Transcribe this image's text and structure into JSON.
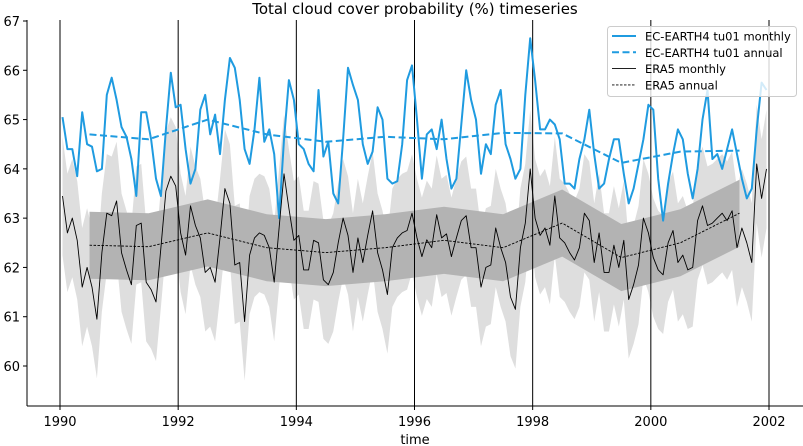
{
  "chart_data": {
    "type": "line",
    "title": "Total cloud cover probability (%) timeseries",
    "xlabel": "time",
    "ylabel": "",
    "xlim": [
      1989.45,
      2002.6
    ],
    "ylim": [
      59.2,
      67.0
    ],
    "xticks": [
      1990,
      1992,
      1994,
      1996,
      1998,
      2000,
      2002
    ],
    "xtick_labels": [
      "1990",
      "1992",
      "1994",
      "1996",
      "1998",
      "2000",
      "2002"
    ],
    "yticks": [
      60,
      61,
      62,
      63,
      64,
      65,
      66,
      67
    ],
    "ytick_labels": [
      "60",
      "61",
      "62",
      "63",
      "64",
      "65",
      "66",
      "67"
    ],
    "vertical_lines": [
      1990,
      1992,
      1994,
      1996,
      1998,
      2000,
      2002
    ],
    "grid": false,
    "legend_placement": "top-right",
    "monthly_start_year": 1990,
    "annual_x": [
      1990.5,
      1991.5,
      1992.5,
      1993.5,
      1994.5,
      1995.5,
      1996.5,
      1997.5,
      1998.5,
      1999.5,
      2000.5,
      2001.5
    ],
    "series": [
      {
        "name": "EC-EARTH4 tu01 monthly",
        "color": "#1f9be0",
        "style": "solid",
        "values": [
          65.05,
          64.4,
          64.4,
          63.85,
          65.15,
          64.5,
          64.45,
          63.95,
          64.0,
          65.5,
          65.85,
          65.4,
          64.85,
          64.65,
          64.2,
          63.45,
          65.15,
          65.15,
          64.6,
          63.8,
          63.45,
          64.8,
          65.95,
          65.25,
          65.3,
          64.4,
          63.7,
          64.0,
          65.2,
          65.5,
          64.7,
          65.1,
          64.3,
          65.4,
          66.25,
          66.05,
          65.4,
          64.4,
          64.1,
          64.8,
          65.85,
          64.55,
          64.8,
          64.3,
          63.0,
          64.6,
          65.8,
          65.4,
          64.5,
          64.4,
          64.1,
          63.95,
          65.6,
          64.25,
          64.55,
          63.5,
          63.3,
          64.6,
          66.05,
          65.7,
          65.4,
          64.5,
          64.1,
          64.35,
          65.25,
          65.0,
          63.8,
          63.7,
          63.75,
          64.5,
          65.8,
          66.1,
          65.0,
          63.8,
          64.7,
          64.8,
          64.4,
          65.0,
          64.2,
          63.6,
          63.8,
          64.9,
          66.0,
          65.4,
          65.0,
          63.9,
          64.5,
          64.3,
          65.3,
          65.6,
          64.5,
          64.2,
          63.8,
          64.0,
          65.5,
          66.65,
          65.8,
          64.8,
          64.8,
          65.0,
          64.9,
          64.6,
          63.7,
          63.7,
          63.6,
          64.2,
          64.6,
          65.2,
          64.3,
          63.6,
          63.7,
          64.2,
          64.6,
          64.6,
          63.9,
          63.3,
          63.6,
          64.1,
          64.6,
          65.3,
          65.2,
          63.8,
          62.95,
          63.7,
          64.3,
          64.8,
          64.6,
          63.9,
          63.4,
          64.0,
          65.0,
          65.6,
          64.2,
          64.3,
          64.0,
          64.4,
          64.8,
          64.3,
          63.8,
          63.4,
          63.6,
          64.8,
          65.75,
          65.6
        ]
      },
      {
        "name": "EC-EARTH4 tu01 annual",
        "color": "#1f9be0",
        "style": "dashed",
        "values": [
          64.7,
          64.6,
          65.0,
          64.7,
          64.55,
          64.65,
          64.6,
          64.73,
          64.72,
          64.12,
          64.35,
          64.37
        ]
      },
      {
        "name": "ERA5 monthly",
        "color": "#000000",
        "style": "solid",
        "values": [
          63.45,
          62.7,
          63.0,
          62.55,
          61.6,
          62.0,
          61.6,
          60.95,
          62.3,
          63.1,
          63.05,
          63.35,
          62.3,
          61.95,
          61.65,
          62.85,
          62.9,
          61.7,
          61.55,
          61.3,
          62.4,
          63.55,
          63.85,
          63.65,
          62.7,
          62.25,
          63.25,
          62.85,
          62.6,
          61.9,
          62.0,
          61.7,
          62.6,
          63.6,
          63.3,
          62.05,
          62.1,
          60.9,
          62.25,
          62.6,
          62.7,
          62.65,
          62.4,
          61.7,
          62.8,
          63.9,
          63.2,
          62.55,
          62.65,
          61.95,
          61.95,
          62.55,
          62.5,
          61.75,
          61.65,
          61.9,
          62.5,
          63.0,
          62.65,
          61.9,
          62.6,
          62.1,
          62.65,
          63.15,
          62.3,
          61.95,
          61.45,
          62.4,
          62.6,
          62.7,
          62.75,
          63.1,
          62.6,
          62.22,
          62.56,
          62.4,
          63.07,
          62.6,
          62.68,
          62.22,
          62.6,
          62.95,
          63.05,
          62.4,
          62.4,
          61.6,
          62.0,
          62.05,
          62.8,
          62.4,
          62.1,
          61.4,
          61.15,
          62.4,
          62.9,
          64.0,
          63.0,
          62.65,
          62.8,
          62.45,
          63.45,
          62.6,
          62.5,
          62.3,
          62.15,
          62.4,
          63.1,
          62.95,
          62.1,
          62.7,
          61.9,
          61.9,
          62.45,
          62.0,
          62.55,
          61.35,
          61.65,
          62.05,
          63.0,
          62.7,
          62.2,
          61.95,
          61.85,
          62.5,
          62.75,
          62.1,
          62.25,
          61.95,
          62.0,
          62.95,
          63.25,
          62.85,
          62.9,
          63.0,
          63.1,
          62.95,
          63.15,
          62.4,
          62.8,
          62.5,
          62.1,
          64.1,
          63.4,
          64.0
        ]
      },
      {
        "name": "ERA5 annual",
        "color": "#000000",
        "style": "dotted",
        "values": [
          62.45,
          62.42,
          62.7,
          62.4,
          62.3,
          62.4,
          62.55,
          62.4,
          62.9,
          62.2,
          62.5,
          63.1
        ]
      }
    ],
    "bands": [
      {
        "around": "ERA5 monthly",
        "half_width": 1.2,
        "color": "#dedede"
      },
      {
        "around": "ERA5 annual",
        "half_width": 0.68,
        "color": "#b3b3b3"
      }
    ]
  }
}
